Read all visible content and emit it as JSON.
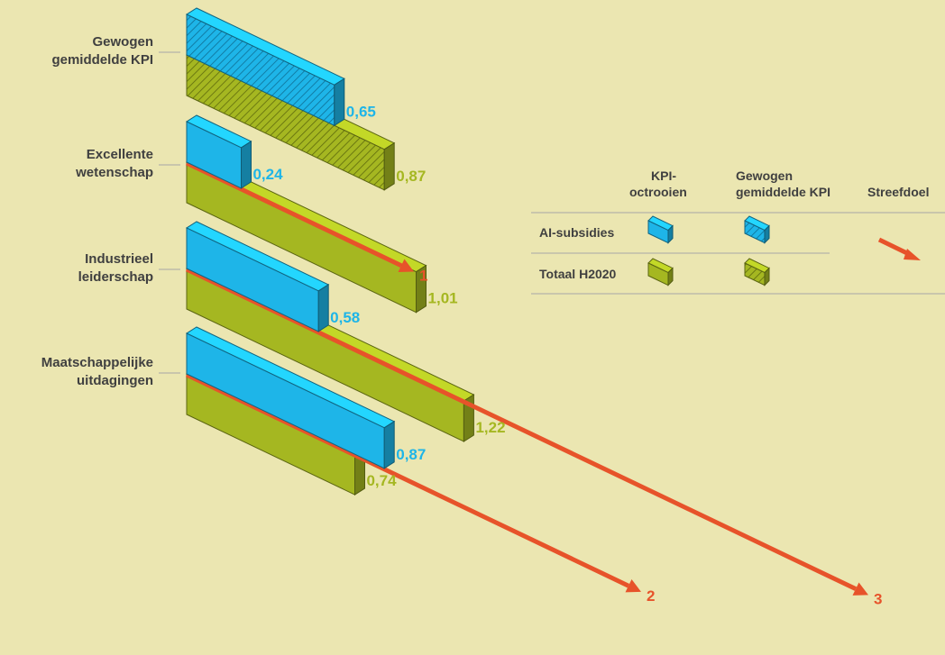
{
  "colors": {
    "background": "#ebe6b1",
    "ai_subsidies": "#1eb5e8",
    "h2020": "#a5b721",
    "target": "#e7532a",
    "label_dark": "#404040",
    "rule": "#a7a7a7"
  },
  "chart_data": {
    "type": "bar",
    "style": "isometric 3D bars (diagonal), grouped by category",
    "categories": [
      "Gewogen gemiddelde KPI",
      "Excellente wetenschap",
      "Industrieel leiderschap",
      "Maatschappelijke uitdagingen"
    ],
    "category_lines": [
      [
        "Gewogen",
        "gemiddelde KPI"
      ],
      [
        "Excellente",
        "wetenschap"
      ],
      [
        "Industrieel",
        "leiderschap"
      ],
      [
        "Maatschappelijke",
        "uitdagingen"
      ]
    ],
    "series": [
      {
        "name": "AI-subsidies",
        "color": "#1eb5e8",
        "values": [
          0.65,
          0.24,
          0.58,
          0.87
        ],
        "labels": [
          "0,65",
          "0,24",
          "0,58",
          "0,87"
        ]
      },
      {
        "name": "Totaal H2020",
        "color": "#a5b721",
        "values": [
          0.87,
          1.01,
          1.22,
          0.74
        ],
        "labels": [
          "0,87",
          "1,01",
          "1,22",
          "0,74"
        ]
      }
    ],
    "hatched_category": "Gewogen gemiddelde KPI",
    "target": {
      "name": "Streefdoel",
      "color": "#e7532a",
      "values": [
        null,
        1,
        3,
        2
      ],
      "labels": [
        "",
        "1",
        "3",
        "2"
      ]
    },
    "legend": {
      "placement": "right",
      "columns": [
        [
          "KPI-",
          "octrooien"
        ],
        [
          "Gewogen",
          "gemiddelde KPI"
        ],
        [
          "Streefdoel"
        ]
      ],
      "rows": [
        "AI-subsidies",
        "Totaal H2020"
      ]
    }
  }
}
